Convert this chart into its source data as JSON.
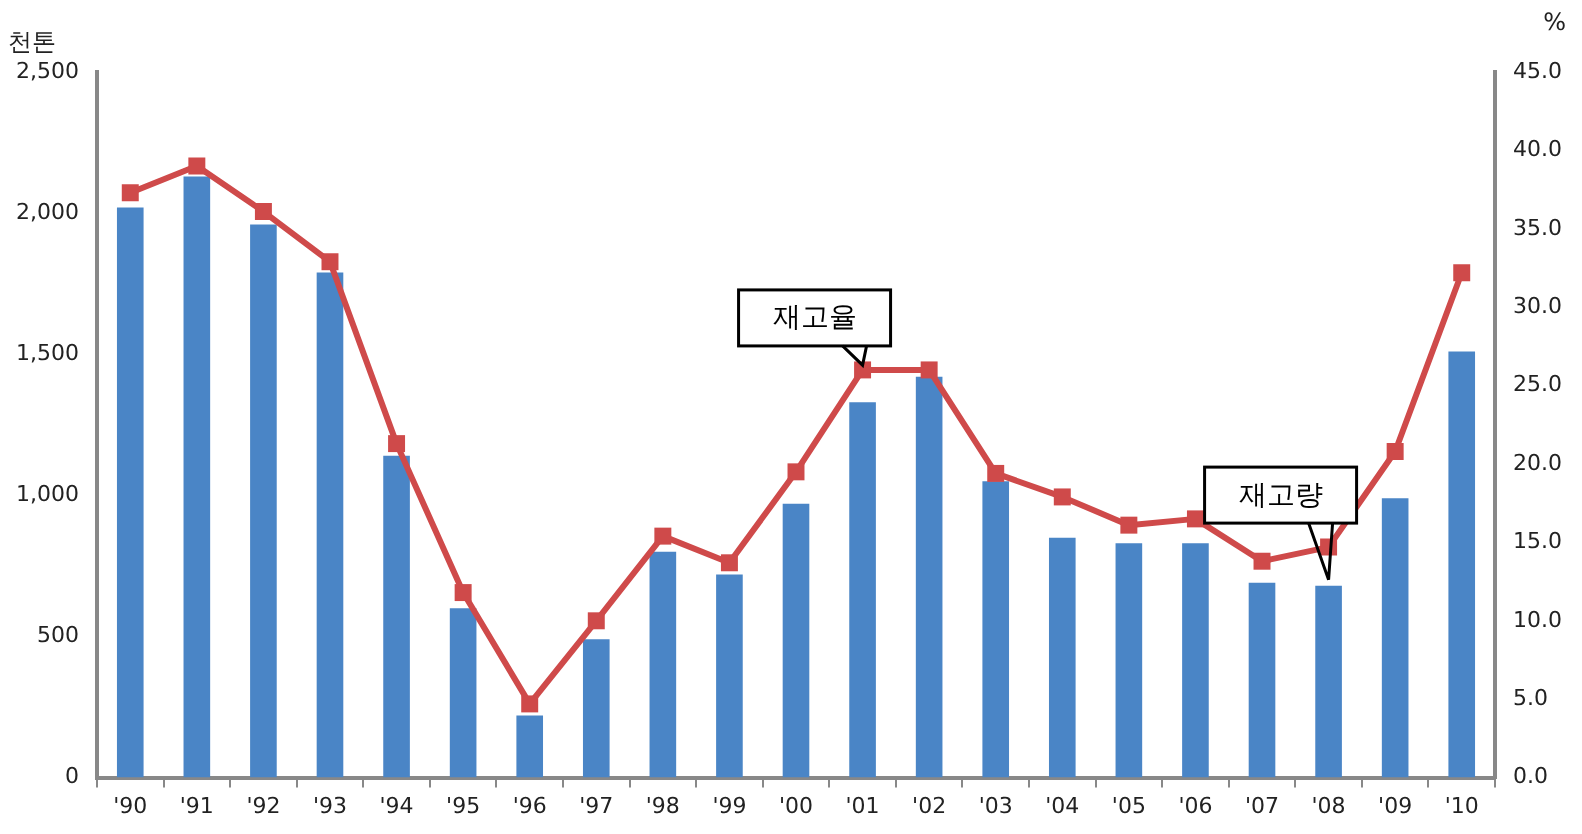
{
  "chart_data": {
    "type": "bar",
    "ylabel": "천톤",
    "y2label": "%",
    "categories": [
      "'90",
      "'91",
      "'92",
      "'93",
      "'94",
      "'95",
      "'96",
      "'97",
      "'98",
      "'99",
      "'00",
      "'01",
      "'02",
      "'03",
      "'04",
      "'05",
      "'06",
      "'07",
      "'08",
      "'09",
      "'10"
    ],
    "series": [
      {
        "color": "#4a85c6",
        "values": [
          2020,
          2130,
          1960,
          1790,
          1140,
          600,
          220,
          490,
          800,
          720,
          970,
          1330,
          1420,
          1050,
          850,
          830,
          830,
          690,
          680,
          990,
          1510
        ]
      },
      {
        "type": "line",
        "axis": "y2",
        "color": "#cf4a4a",
        "values": [
          37.3,
          39.0,
          36.1,
          32.9,
          21.3,
          11.8,
          4.7,
          10.0,
          15.4,
          13.7,
          19.5,
          26.0,
          26.0,
          19.4,
          17.9,
          16.1,
          16.5,
          13.8,
          14.7,
          20.8,
          32.2
        ]
      }
    ],
    "ylim": [
      0,
      2500
    ],
    "yticks": [
      {
        "value": 0,
        "label": "0"
      },
      {
        "value": 500,
        "label": "500"
      },
      {
        "value": 1000,
        "label": "1,000"
      },
      {
        "value": 1500,
        "label": "1,500"
      },
      {
        "value": 2000,
        "label": "2,000"
      },
      {
        "value": 2500,
        "label": "2,500"
      }
    ],
    "y2lim": [
      0,
      45
    ],
    "y2ticks": [
      {
        "value": 0,
        "label": "0.0"
      },
      {
        "value": 5,
        "label": "5.0"
      },
      {
        "value": 10,
        "label": "10.0"
      },
      {
        "value": 15,
        "label": "15.0"
      },
      {
        "value": 20,
        "label": "20.0"
      },
      {
        "value": 25,
        "label": "25.0"
      },
      {
        "value": 30,
        "label": "30.0"
      },
      {
        "value": 35,
        "label": "35.0"
      },
      {
        "value": 40,
        "label": "40.0"
      },
      {
        "value": 45,
        "label": "45.0"
      }
    ],
    "marker": "square",
    "grid": false,
    "legend": false,
    "annotations": [
      {
        "text": "재고율",
        "x": "'01",
        "y": 1440
      },
      {
        "text": "재고량",
        "x": "'08",
        "y": 680
      }
    ]
  }
}
